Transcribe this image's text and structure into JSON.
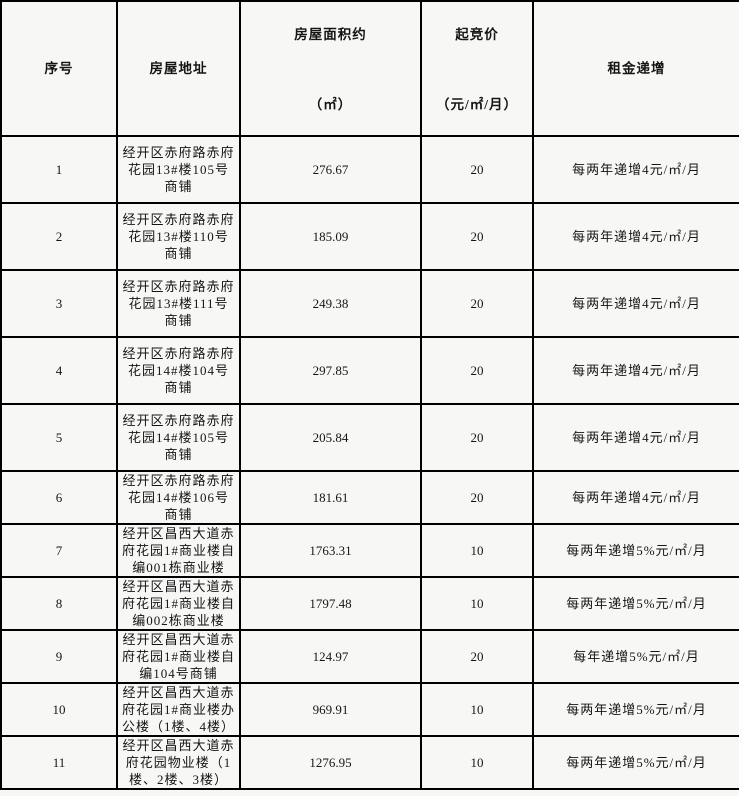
{
  "table": {
    "headers": {
      "index": {
        "line1": "序号",
        "line2": ""
      },
      "address": {
        "line1": "房屋地址",
        "line2": ""
      },
      "area": {
        "line1": "房屋面积约",
        "line2": "（㎡）"
      },
      "price": {
        "line1": "起竞价",
        "line2": "（元/㎡/月）"
      },
      "rent": {
        "line1": "租金递增",
        "line2": ""
      }
    },
    "rows": [
      {
        "index": "1",
        "address": "经开区赤府路赤府花园13#楼105号商铺",
        "area": "276.67",
        "price": "20",
        "rent": "每两年递增4元/㎡/月"
      },
      {
        "index": "2",
        "address": "经开区赤府路赤府花园13#楼110号商铺",
        "area": "185.09",
        "price": "20",
        "rent": "每两年递增4元/㎡/月"
      },
      {
        "index": "3",
        "address": "经开区赤府路赤府花园13#楼111号商铺",
        "area": "249.38",
        "price": "20",
        "rent": "每两年递增4元/㎡/月"
      },
      {
        "index": "4",
        "address": "经开区赤府路赤府花园14#楼104号商铺",
        "area": "297.85",
        "price": "20",
        "rent": "每两年递增4元/㎡/月"
      },
      {
        "index": "5",
        "address": "经开区赤府路赤府花园14#楼105号商铺",
        "area": "205.84",
        "price": "20",
        "rent": "每两年递增4元/㎡/月"
      },
      {
        "index": "6",
        "address": "经开区赤府路赤府花园14#楼106号商铺",
        "area": "181.61",
        "price": "20",
        "rent": "每两年递增4元/㎡/月"
      },
      {
        "index": "7",
        "address": "经开区昌西大道赤府花园1#商业楼自编001栋商业楼",
        "area": "1763.31",
        "price": "10",
        "rent": "每两年递增5%元/㎡/月"
      },
      {
        "index": "8",
        "address": "经开区昌西大道赤府花园1#商业楼自编002栋商业楼",
        "area": "1797.48",
        "price": "10",
        "rent": "每两年递增5%元/㎡/月"
      },
      {
        "index": "9",
        "address": "经开区昌西大道赤府花园1#商业楼自编104号商铺",
        "area": "124.97",
        "price": "20",
        "rent": "每年递增5%元/㎡/月"
      },
      {
        "index": "10",
        "address": "经开区昌西大道赤府花园1#商业楼办公楼（1楼、4楼）",
        "area": "969.91",
        "price": "10",
        "rent": "每两年递增5%元/㎡/月"
      },
      {
        "index": "11",
        "address": "经开区昌西大道赤府花园物业楼（1楼、2楼、3楼）",
        "area": "1276.95",
        "price": "10",
        "rent": "每两年递增5%元/㎡/月"
      }
    ],
    "colors": {
      "border": "#000000",
      "background": "#f7f8f6",
      "text": "#151515"
    }
  }
}
